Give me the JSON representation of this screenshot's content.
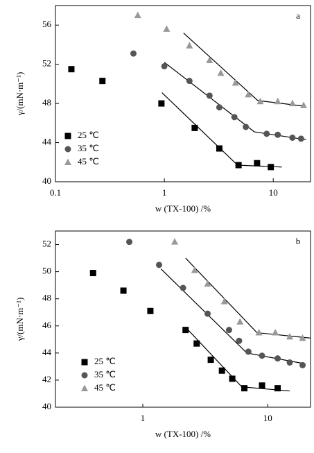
{
  "chart_data": [
    {
      "type": "scatter",
      "panel_label": "a",
      "xlabel": "w (TX-100) /%",
      "ylabel": "γ/(mN·m⁻¹)",
      "xscale": "log",
      "xlim": [
        0.1,
        22
      ],
      "ylim": [
        40,
        58
      ],
      "xticks": [
        0.1,
        1,
        10
      ],
      "yticks": [
        40,
        44,
        48,
        52,
        56
      ],
      "series": [
        {
          "name": "25 ℃",
          "marker": "square",
          "color": "#000000",
          "x": [
            0.14,
            0.27,
            0.94,
            1.9,
            3.2,
            4.8,
            7.1,
            9.5
          ],
          "values": [
            51.5,
            50.3,
            48.0,
            45.5,
            43.4,
            41.7,
            41.9,
            41.5
          ]
        },
        {
          "name": "35 ℃",
          "marker": "circle",
          "color": "#555555",
          "x": [
            0.52,
            1.0,
            1.7,
            2.6,
            3.2,
            4.4,
            5.6,
            8.7,
            11,
            15,
            18
          ],
          "values": [
            53.1,
            51.8,
            50.3,
            48.8,
            47.6,
            46.6,
            45.6,
            44.9,
            44.8,
            44.5,
            44.4
          ]
        },
        {
          "name": "45 ℃",
          "marker": "triangle",
          "color": "#999999",
          "x": [
            0.57,
            1.05,
            1.7,
            2.6,
            3.3,
            4.5,
            5.9,
            7.6,
            11,
            15,
            19
          ],
          "values": [
            57.0,
            55.6,
            53.9,
            52.4,
            51.1,
            50.1,
            48.9,
            48.2,
            48.2,
            48.0,
            47.8
          ]
        }
      ],
      "fits": [
        {
          "x": [
            0.95,
            4.7,
            12
          ],
          "values": [
            49.1,
            41.7,
            41.5
          ]
        },
        {
          "x": [
            1.0,
            6.7,
            20
          ],
          "values": [
            52.2,
            45.1,
            44.3
          ]
        },
        {
          "x": [
            1.5,
            7.2,
            20
          ],
          "values": [
            55.2,
            48.3,
            47.7
          ]
        }
      ]
    },
    {
      "type": "scatter",
      "panel_label": "b",
      "xlabel": "w (TX-100) /%",
      "ylabel": "γ/(mN·m⁻¹)",
      "xscale": "log",
      "xlim": [
        0.2,
        22
      ],
      "ylim": [
        40,
        53
      ],
      "xticks": [
        1,
        10
      ],
      "yticks": [
        40,
        42,
        44,
        46,
        48,
        50,
        52
      ],
      "series": [
        {
          "name": "25 ℃",
          "marker": "square",
          "color": "#000000",
          "x": [
            0.4,
            0.7,
            1.15,
            2.2,
            2.7,
            3.5,
            4.3,
            5.2,
            6.5,
            9,
            12
          ],
          "values": [
            49.9,
            48.6,
            47.1,
            45.7,
            44.7,
            43.5,
            42.7,
            42.1,
            41.4,
            41.6,
            41.4
          ]
        },
        {
          "name": "35 ℃",
          "marker": "circle",
          "color": "#555555",
          "x": [
            0.78,
            1.35,
            2.1,
            3.3,
            4.9,
            5.9,
            7,
            9,
            12,
            15,
            19
          ],
          "values": [
            52.2,
            50.5,
            48.8,
            46.9,
            45.7,
            44.9,
            44.1,
            43.8,
            43.6,
            43.3,
            43.1
          ]
        },
        {
          "name": "45 ℃",
          "marker": "triangle",
          "color": "#999999",
          "x": [
            1.8,
            2.6,
            3.3,
            4.5,
            6,
            8.5,
            11.5,
            15,
            19
          ],
          "values": [
            52.2,
            50.1,
            49.1,
            47.8,
            46.3,
            45.5,
            45.5,
            45.2,
            45.1
          ]
        }
      ],
      "fits": [
        {
          "x": [
            2.2,
            6.2,
            15
          ],
          "values": [
            45.9,
            41.5,
            41.2
          ]
        },
        {
          "x": [
            1.4,
            6.8,
            20
          ],
          "values": [
            50.2,
            44.0,
            43.2
          ]
        },
        {
          "x": [
            2.2,
            8.2,
            22
          ],
          "values": [
            51.0,
            45.5,
            45.1
          ]
        }
      ]
    }
  ]
}
